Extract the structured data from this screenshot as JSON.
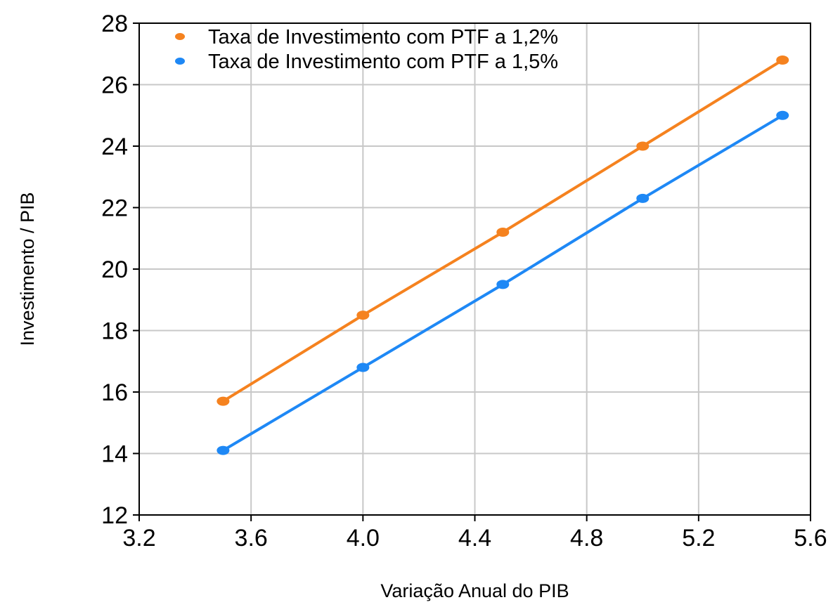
{
  "chart_data": {
    "type": "line",
    "title": "",
    "xlabel": "Variação Anual do PIB",
    "ylabel": "Investimento / PIB",
    "xlim": [
      3.2,
      5.6
    ],
    "ylim": [
      12,
      28
    ],
    "x_ticks": [
      "3.2",
      "3.6",
      "4.0",
      "4.4",
      "4.8",
      "5.2",
      "5.6"
    ],
    "y_ticks": [
      "12",
      "14",
      "16",
      "18",
      "20",
      "22",
      "24",
      "26",
      "28"
    ],
    "grid": true,
    "legend_position": "top-left",
    "x": [
      3.5,
      4.0,
      4.5,
      5.0,
      5.5
    ],
    "series": [
      {
        "name": "Taxa de Investimento com PTF a 1,2%",
        "color": "#f5821f",
        "values": [
          15.7,
          18.5,
          21.2,
          24.0,
          26.8
        ]
      },
      {
        "name": "Taxa de Investimento com PTF a 1,5%",
        "color": "#1e88f5",
        "values": [
          14.1,
          16.8,
          19.5,
          22.3,
          25.0
        ]
      }
    ]
  }
}
